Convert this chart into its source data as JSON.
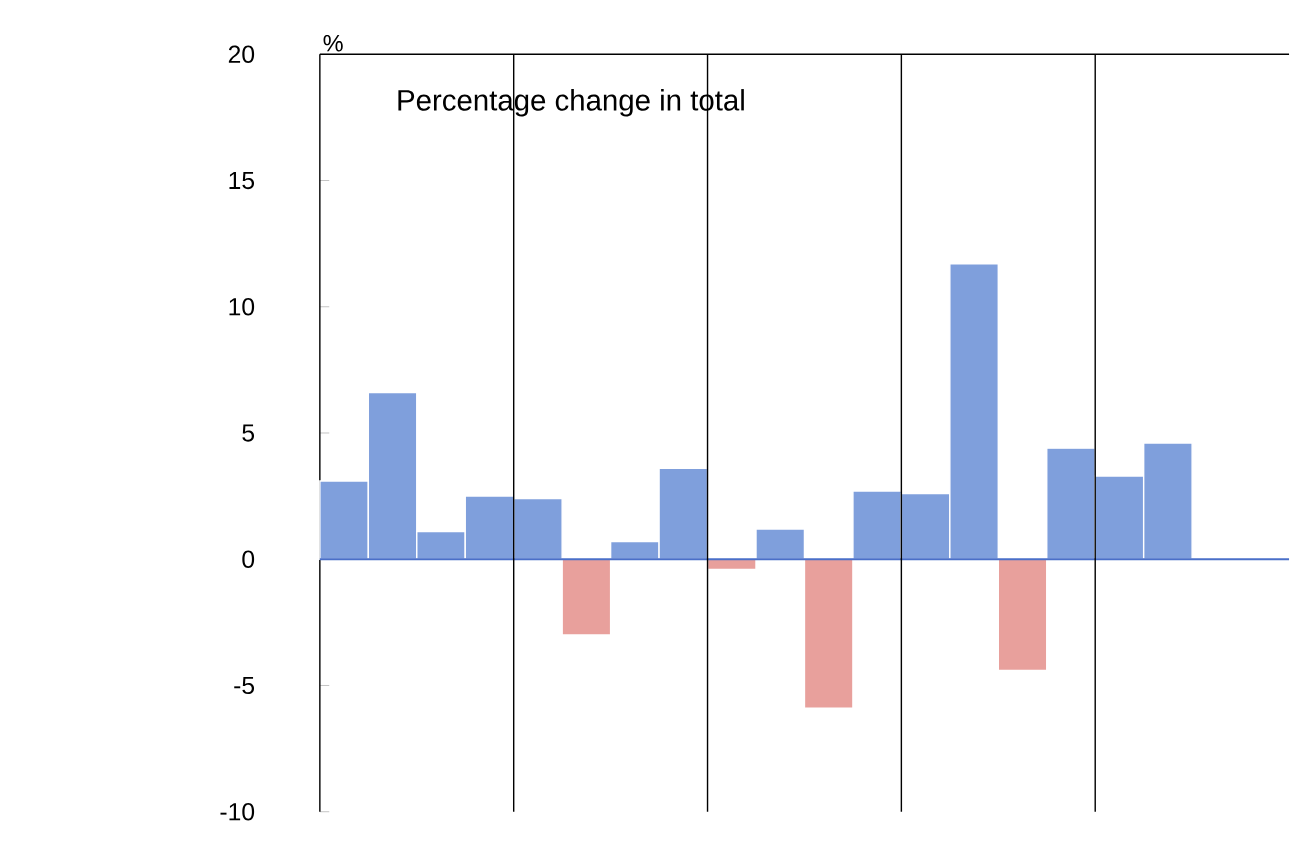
{
  "chart_data": {
    "type": "bar",
    "title": "Percentage change in total",
    "ylabel": "%",
    "categories": [
      null,
      null,
      null,
      null,
      null,
      null,
      null,
      null,
      null,
      null,
      null,
      null,
      null,
      null,
      null,
      null,
      null,
      null,
      null,
      null
    ],
    "values": [
      3.1,
      6.6,
      1.1,
      2.5,
      2.4,
      -3.0,
      0.7,
      3.6,
      -0.4,
      1.2,
      -5.9,
      2.7,
      2.6,
      11.7,
      -4.4,
      4.4,
      3.3,
      4.6,
      null,
      null
    ],
    "colors": [
      "#7f9fdc",
      "#7f9fdc",
      "#7f9fdc",
      "#7f9fdc",
      "#7f9fdc",
      "#e8a09c",
      "#7f9fdc",
      "#7f9fdc",
      "#e8a09c",
      "#7f9fdc",
      "#e8a09c",
      "#7f9fdc",
      "#7f9fdc",
      "#7f9fdc",
      "#e8a09c",
      "#7f9fdc",
      "#7f9fdc",
      "#7f9fdc",
      "#7f9fdc",
      "#7f9fdc"
    ],
    "ylim": [
      -10,
      20
    ],
    "yticks": [
      -10,
      -5,
      0,
      5,
      10,
      15,
      20
    ],
    "ref_lines": [
      {
        "axis": "y",
        "value": 0,
        "color": "#4a6fc8"
      }
    ]
  }
}
